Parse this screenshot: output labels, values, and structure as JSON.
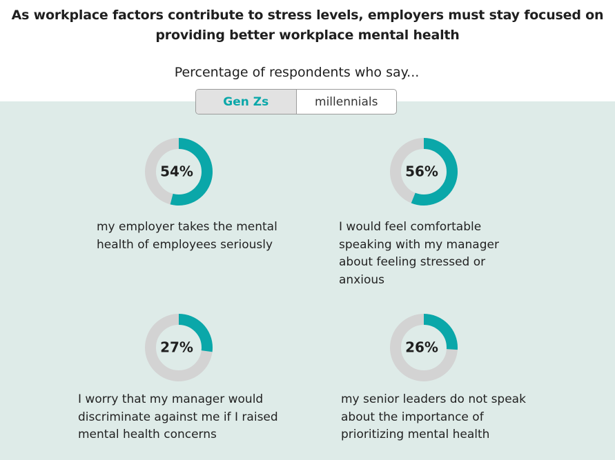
{
  "title": "As workplace factors contribute to stress levels, employers must stay focused on providing better workplace mental health",
  "subtitle": "Percentage of respondents who say...",
  "toggle": {
    "options": [
      "Gen Zs",
      "millennials"
    ],
    "selected": "Gen Zs"
  },
  "colors": {
    "accent": "#0aa7a9",
    "track": "#d3d3d3",
    "panel": "#deebe8"
  },
  "chart_data": {
    "type": "pie",
    "title": "As workplace factors contribute to stress levels, employers must stay focused on providing better workplace mental health",
    "subtitle": "Percentage of respondents who say...",
    "series_name": "Gen Zs",
    "items": [
      {
        "value": 54,
        "label": "54%",
        "text": "my employer takes the mental health of employees seriously"
      },
      {
        "value": 56,
        "label": "56%",
        "text": "I would feel comfortable speaking with my manager about feeling stressed or anxious"
      },
      {
        "value": 27,
        "label": "27%",
        "text": "I worry that my manager would discriminate against me if I raised mental health concerns"
      },
      {
        "value": 26,
        "label": "26%",
        "text": "my senior leaders do not speak about the importance of prioritizing mental health"
      }
    ]
  }
}
